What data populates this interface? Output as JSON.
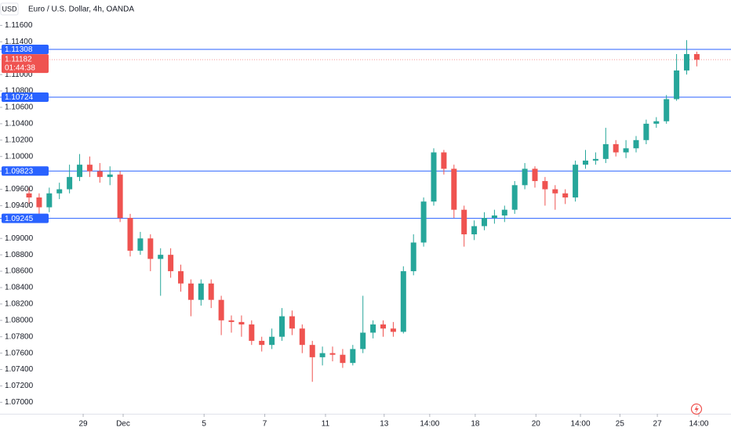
{
  "chart_data": {
    "type": "candlestick",
    "title": "Euro / U.S. Dollar, 4h, OANDA",
    "currency": "USD",
    "up_color": "#26a69a",
    "down_color": "#ef5350",
    "level_color": "#2962ff",
    "ylim": [
      1.0686,
      1.1191
    ],
    "xlim": [
      -2.87,
      69.38
    ],
    "yticks": [
      {
        "value": 1.116,
        "label": "1.11600"
      },
      {
        "value": 1.114,
        "label": "1.11400"
      },
      {
        "value": 1.11,
        "label": "1.11000"
      },
      {
        "value": 1.108,
        "label": "1.10800"
      },
      {
        "value": 1.106,
        "label": "1.10600"
      },
      {
        "value": 1.104,
        "label": "1.10400"
      },
      {
        "value": 1.102,
        "label": "1.10200"
      },
      {
        "value": 1.1,
        "label": "1.10000"
      },
      {
        "value": 1.096,
        "label": "1.09600"
      },
      {
        "value": 1.094,
        "label": "1.09400"
      },
      {
        "value": 1.09,
        "label": "1.09000"
      },
      {
        "value": 1.088,
        "label": "1.08800"
      },
      {
        "value": 1.086,
        "label": "1.08600"
      },
      {
        "value": 1.084,
        "label": "1.08400"
      },
      {
        "value": 1.082,
        "label": "1.08200"
      },
      {
        "value": 1.08,
        "label": "1.08000"
      },
      {
        "value": 1.078,
        "label": "1.07800"
      },
      {
        "value": 1.076,
        "label": "1.07600"
      },
      {
        "value": 1.074,
        "label": "1.07400"
      },
      {
        "value": 1.072,
        "label": "1.07200"
      },
      {
        "value": 1.07,
        "label": "1.07000"
      }
    ],
    "xticks": [
      {
        "value": 5.35,
        "label": "29"
      },
      {
        "value": 9.3,
        "label": "Dec"
      },
      {
        "value": 17.3,
        "label": "5"
      },
      {
        "value": 23.3,
        "label": "7"
      },
      {
        "value": 29.3,
        "label": "11"
      },
      {
        "value": 35.1,
        "label": "13"
      },
      {
        "value": 39.6,
        "label": "14:00"
      },
      {
        "value": 44.1,
        "label": "18"
      },
      {
        "value": 50.1,
        "label": "20"
      },
      {
        "value": 54.5,
        "label": "14:00"
      },
      {
        "value": 58.4,
        "label": "25"
      },
      {
        "value": 62.1,
        "label": "27"
      },
      {
        "value": 66.2,
        "label": "14:00"
      }
    ],
    "levels": [
      1.11308,
      1.10724,
      1.09823,
      1.09245
    ],
    "last_price": 1.11182,
    "countdown": "01:44:38",
    "open": [
      1.0955,
      1.095,
      1.0938,
      1.0955,
      1.096,
      1.0975,
      1.099,
      1.0982,
      1.0975,
      1.0978,
      1.0925,
      1.0885,
      1.09,
      1.0875,
      1.088,
      1.086,
      1.0845,
      1.0825,
      1.0845,
      1.0825,
      1.08,
      1.0798,
      1.0795,
      1.0775,
      1.077,
      1.078,
      1.0805,
      1.079,
      1.077,
      1.0755,
      1.076,
      1.0758,
      1.0748,
      1.0765,
      1.0785,
      1.0795,
      1.079,
      1.0786,
      1.086,
      1.0895,
      1.0945,
      1.1005,
      1.0985,
      1.0935,
      1.0905,
      1.0915,
      1.0925,
      1.0928,
      1.0935,
      1.0965,
      1.0985,
      1.097,
      1.096,
      1.0955,
      1.095,
      1.099,
      1.0995,
      1.0997,
      1.1015,
      1.1005,
      1.101,
      1.102,
      1.104,
      1.1043,
      1.107,
      1.1105,
      1.1125
    ],
    "high": [
      1.0962,
      1.0955,
      1.0962,
      1.0968,
      1.099,
      1.1003,
      1.1,
      1.0992,
      1.0988,
      1.0982,
      1.093,
      1.0908,
      1.0905,
      1.0888,
      1.0888,
      1.0868,
      1.085,
      1.085,
      1.085,
      1.083,
      1.0806,
      1.0806,
      1.08,
      1.078,
      1.079,
      1.0815,
      1.0812,
      1.0795,
      1.0775,
      1.0768,
      1.0768,
      1.0765,
      1.077,
      1.083,
      1.08,
      1.08,
      1.0798,
      1.0866,
      1.0905,
      1.095,
      1.101,
      1.1008,
      1.099,
      1.094,
      1.0922,
      1.0932,
      1.0935,
      1.094,
      1.097,
      1.0992,
      1.0988,
      1.0975,
      1.0965,
      1.096,
      1.0995,
      1.1008,
      1.1005,
      1.1035,
      1.102,
      1.102,
      1.1025,
      1.1045,
      1.1048,
      1.1075,
      1.1125,
      1.1142,
      1.1128
    ],
    "low": [
      1.0942,
      1.0925,
      1.0932,
      1.0948,
      1.0955,
      1.097,
      1.0975,
      1.0968,
      1.0965,
      1.092,
      1.0878,
      1.088,
      1.086,
      1.083,
      1.0852,
      1.0835,
      1.0805,
      1.0818,
      1.0815,
      1.0782,
      1.0785,
      1.078,
      1.077,
      1.0762,
      1.0765,
      1.0775,
      1.0782,
      1.076,
      1.0725,
      1.0745,
      1.075,
      1.0742,
      1.0745,
      1.076,
      1.0778,
      1.078,
      1.078,
      1.0784,
      1.0855,
      1.089,
      1.094,
      1.0978,
      1.0925,
      1.089,
      1.0898,
      1.091,
      1.0918,
      1.092,
      1.093,
      1.096,
      1.0962,
      1.094,
      1.0935,
      1.0942,
      1.0945,
      1.0985,
      1.099,
      1.0992,
      1.1,
      1.0998,
      1.1005,
      1.1015,
      1.1035,
      1.104,
      1.1068,
      1.11,
      1.111
    ],
    "close": [
      1.095,
      1.0938,
      1.0955,
      1.096,
      1.0975,
      1.099,
      1.0982,
      1.0975,
      1.0978,
      1.0925,
      1.0885,
      1.09,
      1.0875,
      1.088,
      1.086,
      1.0845,
      1.0825,
      1.0845,
      1.0825,
      1.08,
      1.0798,
      1.0795,
      1.0775,
      1.077,
      1.078,
      1.0805,
      1.079,
      1.077,
      1.0755,
      1.076,
      1.0758,
      1.0748,
      1.0765,
      1.0785,
      1.0795,
      1.079,
      1.0786,
      1.086,
      1.0895,
      1.0945,
      1.1005,
      1.0985,
      1.0935,
      1.0905,
      1.0915,
      1.0925,
      1.0928,
      1.0935,
      1.0965,
      1.0985,
      1.097,
      1.096,
      1.0955,
      1.095,
      1.099,
      1.0995,
      1.0997,
      1.1015,
      1.1005,
      1.101,
      1.102,
      1.104,
      1.1043,
      1.107,
      1.1105,
      1.1125,
      1.1118
    ]
  }
}
